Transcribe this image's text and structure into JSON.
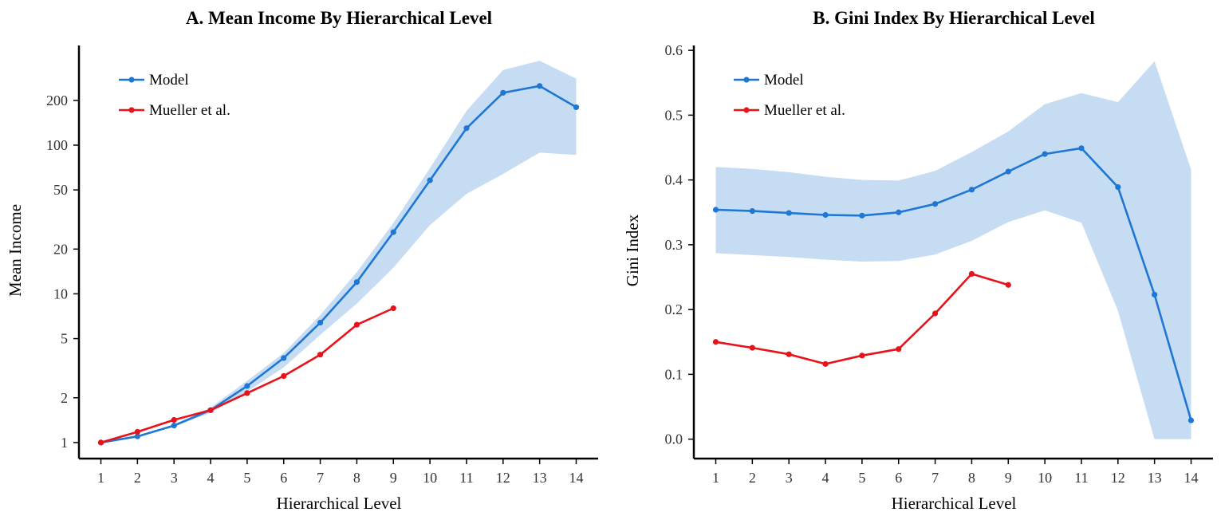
{
  "colors": {
    "model": "#1f77d4",
    "mueller": "#e8121b",
    "band": "#c6dcf2"
  },
  "chart_data": [
    {
      "type": "line",
      "title": "A.  Mean Income By Hierarchical Level",
      "xlabel": "Hierarchical Level",
      "ylabel": "Mean Income",
      "yscale": "log",
      "xlim": [
        0.4,
        14.6
      ],
      "ylim": [
        0.78,
        480
      ],
      "xticks": [
        1,
        2,
        3,
        4,
        5,
        6,
        7,
        8,
        9,
        10,
        11,
        12,
        13,
        14
      ],
      "yticks": [
        1,
        2,
        5,
        10,
        20,
        50,
        100,
        200
      ],
      "legend_position": "top-left",
      "series": [
        {
          "name": "Model",
          "x": [
            1,
            2,
            3,
            4,
            5,
            6,
            7,
            8,
            9,
            10,
            11,
            12,
            13,
            14
          ],
          "y": [
            1,
            1.1,
            1.3,
            1.65,
            2.4,
            3.7,
            6.4,
            12,
            26,
            58,
            130,
            225,
            250,
            180
          ],
          "band_lower": [
            1,
            1.1,
            1.28,
            1.58,
            2.2,
            3.2,
            5.3,
            8.6,
            15,
            29,
            47,
            64,
            89,
            86
          ],
          "band_upper": [
            1,
            1.1,
            1.32,
            1.72,
            2.6,
            4.0,
            7.2,
            14,
            30,
            70,
            170,
            320,
            370,
            280
          ]
        },
        {
          "name": "Mueller et al.",
          "x": [
            1,
            2,
            3,
            4,
            5,
            6,
            7,
            8,
            9
          ],
          "y": [
            1,
            1.18,
            1.42,
            1.65,
            2.15,
            2.8,
            3.9,
            6.2,
            8.0
          ]
        }
      ]
    },
    {
      "type": "line",
      "title": "B.  Gini Index By Hierarchical Level",
      "xlabel": "Hierarchical Level",
      "ylabel": "Gini Index",
      "yscale": "linear",
      "xlim": [
        0.4,
        14.6
      ],
      "ylim": [
        -0.03,
        0.61
      ],
      "xticks": [
        1,
        2,
        3,
        4,
        5,
        6,
        7,
        8,
        9,
        10,
        11,
        12,
        13,
        14
      ],
      "yticks": [
        0.0,
        0.1,
        0.2,
        0.3,
        0.4,
        0.5,
        0.6
      ],
      "ytick_labels": [
        "0.0",
        "0.1",
        "0.2",
        "0.3",
        "0.4",
        "0.5",
        "0.6"
      ],
      "legend_position": "top-left",
      "series": [
        {
          "name": "Model",
          "x": [
            1,
            2,
            3,
            4,
            5,
            6,
            7,
            8,
            9,
            10,
            11,
            12,
            13,
            14
          ],
          "y": [
            0.354,
            0.352,
            0.349,
            0.346,
            0.345,
            0.35,
            0.363,
            0.385,
            0.413,
            0.44,
            0.449,
            0.389,
            0.223,
            0.029
          ],
          "band_lower": [
            0.287,
            0.284,
            0.281,
            0.277,
            0.274,
            0.275,
            0.285,
            0.306,
            0.335,
            0.353,
            0.334,
            0.198,
            0.0,
            0.0
          ],
          "band_upper": [
            0.42,
            0.417,
            0.412,
            0.405,
            0.4,
            0.399,
            0.414,
            0.443,
            0.475,
            0.517,
            0.534,
            0.52,
            0.583,
            0.416
          ]
        },
        {
          "name": "Mueller et al.",
          "x": [
            1,
            2,
            3,
            4,
            5,
            6,
            7,
            8,
            9
          ],
          "y": [
            0.15,
            0.141,
            0.131,
            0.116,
            0.129,
            0.139,
            0.194,
            0.255,
            0.238
          ]
        }
      ]
    }
  ]
}
